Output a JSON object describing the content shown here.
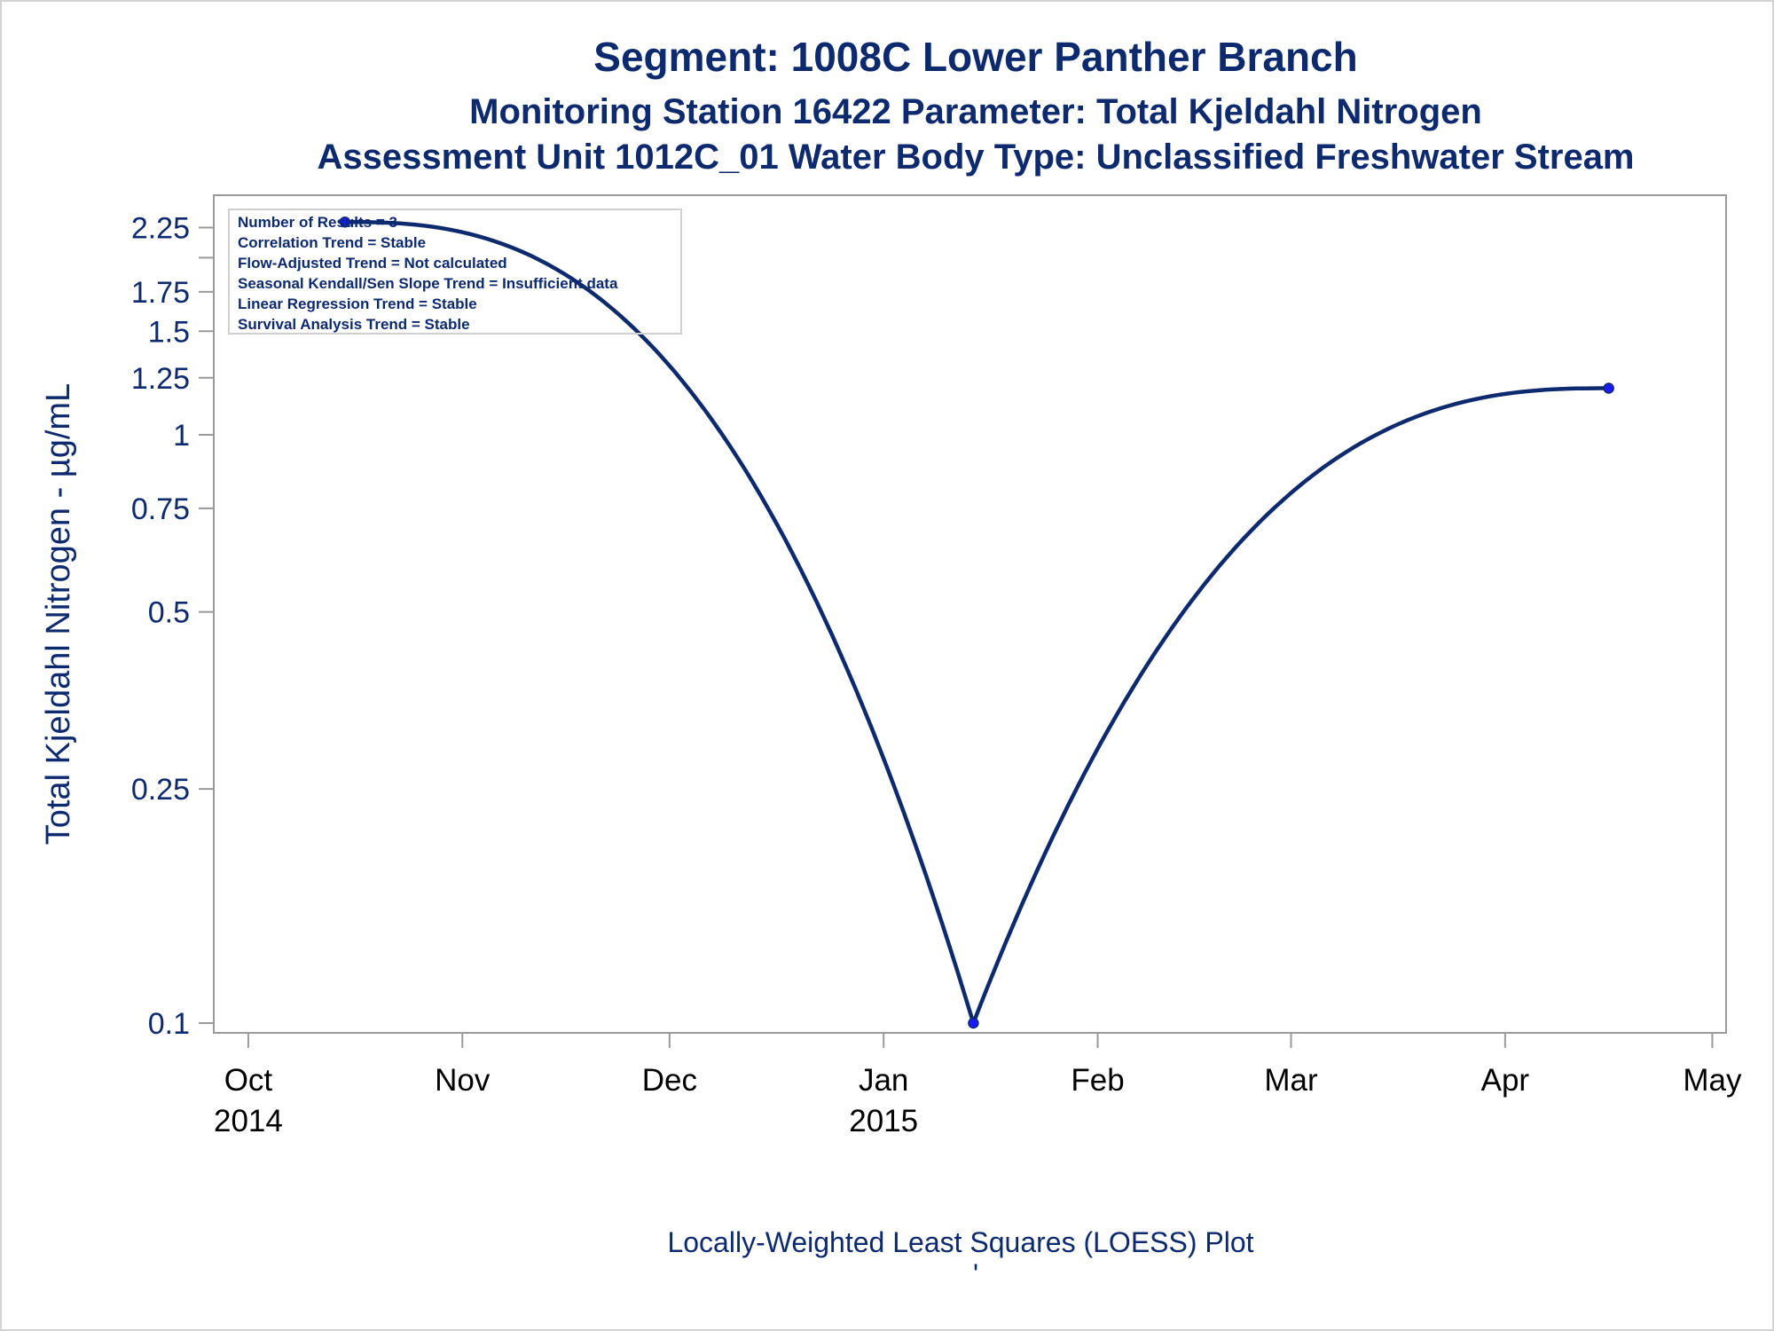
{
  "chart_data": {
    "type": "line",
    "title": "Segment: 1008C  Lower Panther Branch",
    "subtitle": "Monitoring Station 16422 Parameter: Total Kjeldahl Nitrogen",
    "subtitle2": "Assessment Unit 1012C_01   Water Body Type: Unclassified Freshwater Stream",
    "ylabel": "Total Kjeldahl Nitrogen -  µg/mL",
    "footnote": "Locally-Weighted Least Squares (LOESS) Plot",
    "footnote_mark": "'",
    "y_scale": "log",
    "ylim": [
      0.1,
      2.45
    ],
    "y_ticks": [
      {
        "value": 0.1,
        "label": "0.1"
      },
      {
        "value": 0.25,
        "label": "0.25"
      },
      {
        "value": 0.5,
        "label": "0.5"
      },
      {
        "value": 0.75,
        "label": "0.75"
      },
      {
        "value": 1,
        "label": "1"
      },
      {
        "value": 1.25,
        "label": "1.25"
      },
      {
        "value": 1.5,
        "label": "1.5"
      },
      {
        "value": 1.75,
        "label": "1.75"
      },
      {
        "value": 2.25,
        "label": "2.25"
      }
    ],
    "y_minor_ticks": [
      2.0
    ],
    "xlim": [
      "2014-09-26",
      "2015-05-03"
    ],
    "x_ticks": [
      {
        "date": "2014-10-01",
        "label": "Oct",
        "sublabel": "2014"
      },
      {
        "date": "2014-11-01",
        "label": "Nov",
        "sublabel": ""
      },
      {
        "date": "2014-12-01",
        "label": "Dec",
        "sublabel": ""
      },
      {
        "date": "2015-01-01",
        "label": "Jan",
        "sublabel": "2015"
      },
      {
        "date": "2015-02-01",
        "label": "Feb",
        "sublabel": ""
      },
      {
        "date": "2015-03-01",
        "label": "Mar",
        "sublabel": ""
      },
      {
        "date": "2015-04-01",
        "label": "Apr",
        "sublabel": ""
      },
      {
        "date": "2015-05-01",
        "label": "May",
        "sublabel": ""
      }
    ],
    "points": [
      {
        "date": "2014-10-15",
        "value": 2.3
      },
      {
        "date": "2015-01-14",
        "value": 0.1
      },
      {
        "date": "2015-04-16",
        "value": 1.2
      }
    ],
    "grid": false,
    "legend": "none",
    "stats_box": [
      "Number of Results = 3",
      "Correlation Trend = Stable",
      "Flow-Adjusted Trend = Not calculated",
      "Seasonal Kendall/Sen Slope Trend = Insufficient data",
      "Linear Regression Trend = Stable",
      "Survival Analysis Trend = Stable"
    ],
    "stats_box_placement": "top-left",
    "colors": {
      "line": "#0d2a6f",
      "marker": "#1a1aff",
      "text": "#0d2a6f",
      "axis": "#9a9a9a"
    }
  }
}
